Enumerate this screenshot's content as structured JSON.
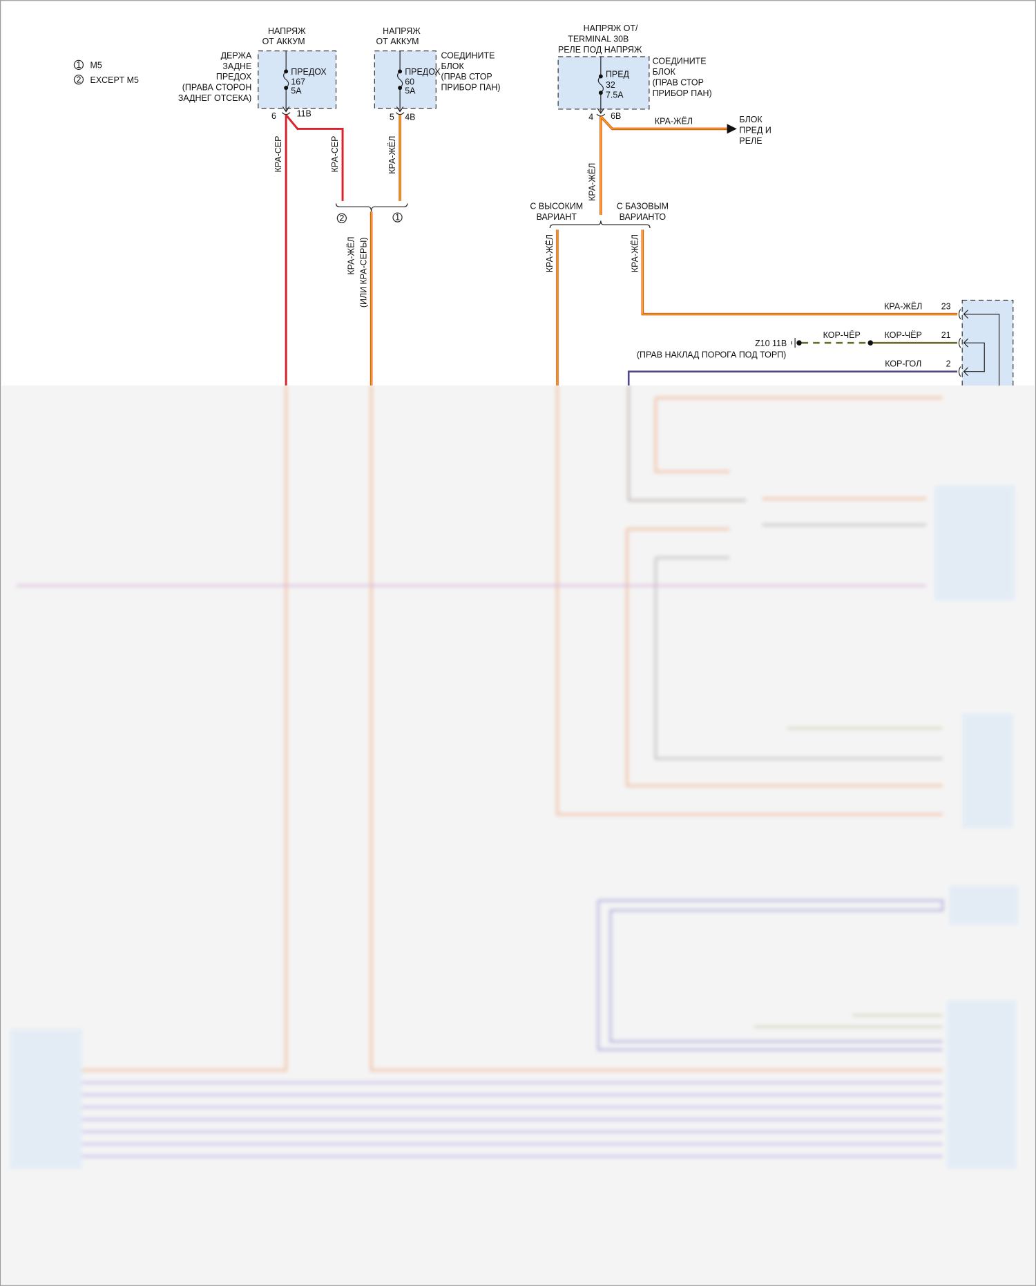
{
  "legend": [
    {
      "num": "1",
      "label": "M5"
    },
    {
      "num": "2",
      "label": "EXCEPT M5"
    }
  ],
  "fuse1": {
    "header": [
      "НАПРЯЖ",
      "ОТ АККУМ"
    ],
    "location": [
      "ДЕРЖА",
      "ЗАДНЕ",
      "ПРЕДОХ",
      "(ПРАВА СТОРОН",
      "ЗАДНЕГ ОТСЕКА)"
    ],
    "fuse": [
      "ПРЕДОХ",
      "167",
      "5A"
    ],
    "pin": "6",
    "connector": "11B"
  },
  "fuse2": {
    "header": [
      "НАПРЯЖ",
      "ОТ АККУМ"
    ],
    "location": [
      "СОЕДИНИТЕ",
      "БЛОК",
      "(ПРАВ СТОР",
      "ПРИБОР ПАН)"
    ],
    "fuse": [
      "ПРЕДОХ",
      "60",
      "5A"
    ],
    "pin": "5",
    "connector": "4B"
  },
  "fuse3": {
    "header": [
      "НАПРЯЖ ОТ/",
      "TERMINAL 30B",
      "РЕЛЕ ПОД НАПРЯЖ"
    ],
    "location": [
      "СОЕДИНИТЕ",
      "БЛОК",
      "(ПРАВ СТОР",
      "ПРИБОР ПАН)"
    ],
    "fuse": [
      "ПРЕД",
      "32",
      "7.5A"
    ],
    "pin": "4",
    "connector": "6B"
  },
  "wires": {
    "kra_ser": "КРА-СЕР",
    "kra_zhel": "КРА-ЖЁЛ",
    "kra_zhel_alt": [
      "КРА-ЖЁЛ",
      "(ИЛИ КРА-СЕРЫ)"
    ],
    "kor_cher": "КОР-ЧЁР",
    "kor_gol": "КОР-ГОЛ"
  },
  "splice_marks": [
    "2",
    "1"
  ],
  "relay_block": [
    "БЛОК",
    "ПРЕД И",
    "РЕЛЕ"
  ],
  "variants": {
    "high": [
      "С ВЫСОКИМ",
      "ВАРИАНТ"
    ],
    "base": [
      "С БАЗОВЫМ",
      "ВАРИАНТО"
    ]
  },
  "ground": {
    "id": "Z10 11B",
    "location": "(ПРАВ НАКЛАД ПОРОГА ПОД ТОРП)"
  },
  "module_pins": [
    "23",
    "21",
    "2"
  ],
  "colors": {
    "red": "#d8232a",
    "orange_yellow": "#e0561c",
    "olive": "#6d6a2c",
    "purple": "#4f4589",
    "component": "#d6e6f7"
  }
}
